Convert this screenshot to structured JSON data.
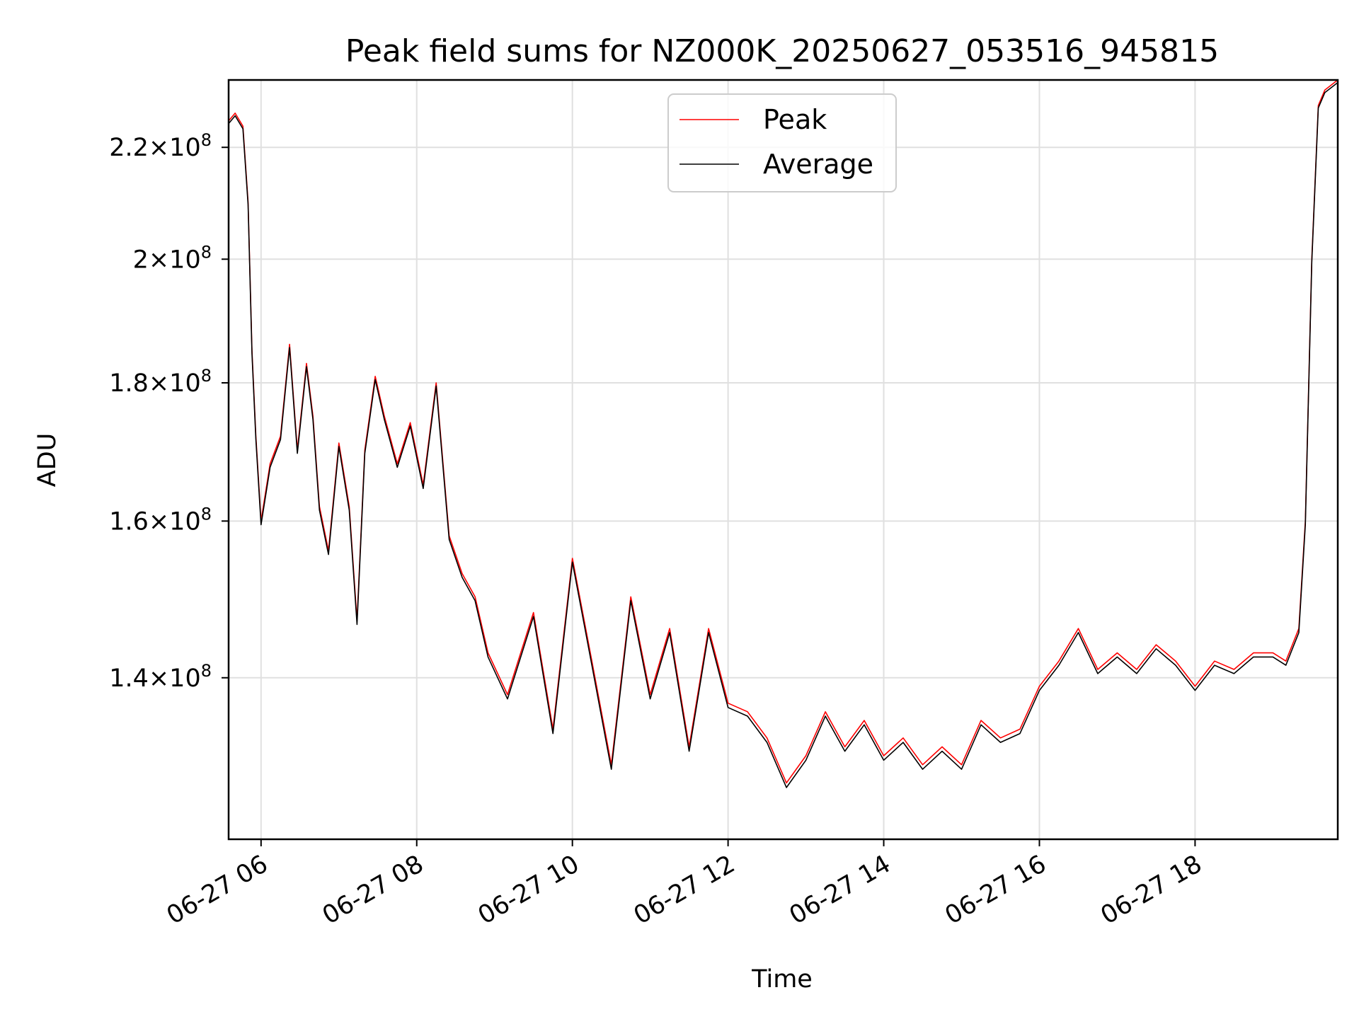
{
  "chart_data": {
    "type": "line",
    "title": "Peak field sums for NZ000K_20250627_053516_945815",
    "xlabel": "Time",
    "ylabel": "ADU",
    "y_scale": "log",
    "grid": true,
    "legend_position": "upper center",
    "xlim": [
      "2025-06-27 05:35",
      "2025-06-27 19:50"
    ],
    "ylim": [
      122000000,
      233000000
    ],
    "x_ticks": [
      {
        "value": "2025-06-27 06:00",
        "label": "06-27 06"
      },
      {
        "value": "2025-06-27 08:00",
        "label": "06-27 08"
      },
      {
        "value": "2025-06-27 10:00",
        "label": "06-27 10"
      },
      {
        "value": "2025-06-27 12:00",
        "label": "06-27 12"
      },
      {
        "value": "2025-06-27 14:00",
        "label": "06-27 14"
      },
      {
        "value": "2025-06-27 16:00",
        "label": "06-27 16"
      },
      {
        "value": "2025-06-27 18:00",
        "label": "06-27 18"
      }
    ],
    "y_ticks": [
      {
        "value": 140000000,
        "mantissa": "1.4",
        "exponent": "8"
      },
      {
        "value": 160000000,
        "mantissa": "1.6",
        "exponent": "8"
      },
      {
        "value": 180000000,
        "mantissa": "1.8",
        "exponent": "8"
      },
      {
        "value": 200000000,
        "mantissa": "2",
        "exponent": "8"
      },
      {
        "value": 220000000,
        "mantissa": "2.2",
        "exponent": "8"
      }
    ],
    "tick_times_label": "×10",
    "series": [
      {
        "name": "Peak",
        "color": "#ff0000",
        "x": [
          "2025-06-27 05:35",
          "2025-06-27 05:40",
          "2025-06-27 05:46",
          "2025-06-27 05:50",
          "2025-06-27 05:53",
          "2025-06-27 05:56",
          "2025-06-27 06:00",
          "2025-06-27 06:07",
          "2025-06-27 06:15",
          "2025-06-27 06:22",
          "2025-06-27 06:28",
          "2025-06-27 06:35",
          "2025-06-27 06:40",
          "2025-06-27 06:45",
          "2025-06-27 06:52",
          "2025-06-27 07:00",
          "2025-06-27 07:08",
          "2025-06-27 07:14",
          "2025-06-27 07:20",
          "2025-06-27 07:28",
          "2025-06-27 07:35",
          "2025-06-27 07:45",
          "2025-06-27 07:55",
          "2025-06-27 08:05",
          "2025-06-27 08:15",
          "2025-06-27 08:25",
          "2025-06-27 08:35",
          "2025-06-27 08:45",
          "2025-06-27 08:55",
          "2025-06-27 09:10",
          "2025-06-27 09:30",
          "2025-06-27 09:45",
          "2025-06-27 10:00",
          "2025-06-27 10:15",
          "2025-06-27 10:30",
          "2025-06-27 10:45",
          "2025-06-27 11:00",
          "2025-06-27 11:15",
          "2025-06-27 11:30",
          "2025-06-27 11:45",
          "2025-06-27 12:00",
          "2025-06-27 12:15",
          "2025-06-27 12:30",
          "2025-06-27 12:45",
          "2025-06-27 13:00",
          "2025-06-27 13:15",
          "2025-06-27 13:30",
          "2025-06-27 13:45",
          "2025-06-27 14:00",
          "2025-06-27 14:15",
          "2025-06-27 14:30",
          "2025-06-27 14:45",
          "2025-06-27 15:00",
          "2025-06-27 15:15",
          "2025-06-27 15:30",
          "2025-06-27 15:45",
          "2025-06-27 16:00",
          "2025-06-27 16:15",
          "2025-06-27 16:30",
          "2025-06-27 16:45",
          "2025-06-27 17:00",
          "2025-06-27 17:15",
          "2025-06-27 17:30",
          "2025-06-27 17:45",
          "2025-06-27 18:00",
          "2025-06-27 18:15",
          "2025-06-27 18:30",
          "2025-06-27 18:45",
          "2025-06-27 19:00",
          "2025-06-27 19:10",
          "2025-06-27 19:15",
          "2025-06-27 19:20",
          "2025-06-27 19:25",
          "2025-06-27 19:30",
          "2025-06-27 19:35",
          "2025-06-27 19:40",
          "2025-06-27 19:50"
        ],
        "values": [
          225000000,
          226500000,
          224000000,
          210000000,
          185000000,
          172000000,
          160000000,
          168000000,
          172000000,
          186000000,
          170000000,
          183000000,
          175000000,
          162000000,
          156000000,
          171000000,
          162000000,
          147000000,
          170000000,
          181000000,
          175000000,
          168000000,
          174000000,
          165000000,
          180000000,
          158000000,
          153000000,
          150000000,
          143000000,
          138000000,
          148000000,
          134000000,
          155000000,
          142000000,
          130000000,
          150000000,
          138000000,
          146000000,
          132000000,
          146000000,
          137000000,
          136000000,
          133000000,
          128000000,
          131000000,
          136000000,
          132000000,
          135000000,
          131000000,
          133000000,
          130000000,
          132000000,
          130000000,
          135000000,
          133000000,
          134000000,
          139000000,
          142000000,
          146000000,
          141000000,
          143000000,
          141000000,
          144000000,
          142000000,
          139000000,
          142000000,
          141000000,
          143000000,
          143000000,
          142000000,
          144000000,
          146000000,
          160000000,
          200000000,
          228000000,
          231000000,
          233000000
        ]
      },
      {
        "name": "Average",
        "color": "#000000",
        "x": [
          "2025-06-27 05:35",
          "2025-06-27 05:40",
          "2025-06-27 05:46",
          "2025-06-27 05:50",
          "2025-06-27 05:53",
          "2025-06-27 05:56",
          "2025-06-27 06:00",
          "2025-06-27 06:07",
          "2025-06-27 06:15",
          "2025-06-27 06:22",
          "2025-06-27 06:28",
          "2025-06-27 06:35",
          "2025-06-27 06:40",
          "2025-06-27 06:45",
          "2025-06-27 06:52",
          "2025-06-27 07:00",
          "2025-06-27 07:08",
          "2025-06-27 07:14",
          "2025-06-27 07:20",
          "2025-06-27 07:28",
          "2025-06-27 07:35",
          "2025-06-27 07:45",
          "2025-06-27 07:55",
          "2025-06-27 08:05",
          "2025-06-27 08:15",
          "2025-06-27 08:25",
          "2025-06-27 08:35",
          "2025-06-27 08:45",
          "2025-06-27 08:55",
          "2025-06-27 09:10",
          "2025-06-27 09:30",
          "2025-06-27 09:45",
          "2025-06-27 10:00",
          "2025-06-27 10:15",
          "2025-06-27 10:30",
          "2025-06-27 10:45",
          "2025-06-27 11:00",
          "2025-06-27 11:15",
          "2025-06-27 11:30",
          "2025-06-27 11:45",
          "2025-06-27 12:00",
          "2025-06-27 12:15",
          "2025-06-27 12:30",
          "2025-06-27 12:45",
          "2025-06-27 13:00",
          "2025-06-27 13:15",
          "2025-06-27 13:30",
          "2025-06-27 13:45",
          "2025-06-27 14:00",
          "2025-06-27 14:15",
          "2025-06-27 14:30",
          "2025-06-27 14:45",
          "2025-06-27 15:00",
          "2025-06-27 15:15",
          "2025-06-27 15:30",
          "2025-06-27 15:45",
          "2025-06-27 16:00",
          "2025-06-27 16:15",
          "2025-06-27 16:30",
          "2025-06-27 16:45",
          "2025-06-27 17:00",
          "2025-06-27 17:15",
          "2025-06-27 17:30",
          "2025-06-27 17:45",
          "2025-06-27 18:00",
          "2025-06-27 18:15",
          "2025-06-27 18:30",
          "2025-06-27 18:45",
          "2025-06-27 19:00",
          "2025-06-27 19:10",
          "2025-06-27 19:15",
          "2025-06-27 19:20",
          "2025-06-27 19:25",
          "2025-06-27 19:30",
          "2025-06-27 19:35",
          "2025-06-27 19:40",
          "2025-06-27 19:50"
        ],
        "values": [
          224500000,
          226000000,
          223500000,
          209500000,
          184500000,
          171500000,
          159500000,
          167500000,
          171500000,
          185500000,
          169500000,
          182500000,
          174500000,
          161500000,
          155500000,
          170500000,
          161500000,
          146500000,
          169500000,
          180500000,
          174500000,
          167500000,
          173500000,
          164500000,
          179500000,
          157500000,
          152500000,
          149500000,
          142500000,
          137500000,
          147500000,
          133500000,
          154500000,
          141500000,
          129500000,
          149500000,
          137500000,
          145500000,
          131500000,
          145500000,
          136500000,
          135500000,
          132500000,
          127500000,
          130500000,
          135500000,
          131500000,
          134500000,
          130500000,
          132500000,
          129500000,
          131500000,
          129500000,
          134500000,
          132500000,
          133500000,
          138500000,
          141500000,
          145500000,
          140500000,
          142500000,
          140500000,
          143500000,
          141500000,
          138500000,
          141500000,
          140500000,
          142500000,
          142500000,
          141500000,
          143500000,
          145500000,
          159500000,
          199500000,
          227500000,
          230500000,
          232500000
        ]
      }
    ]
  }
}
